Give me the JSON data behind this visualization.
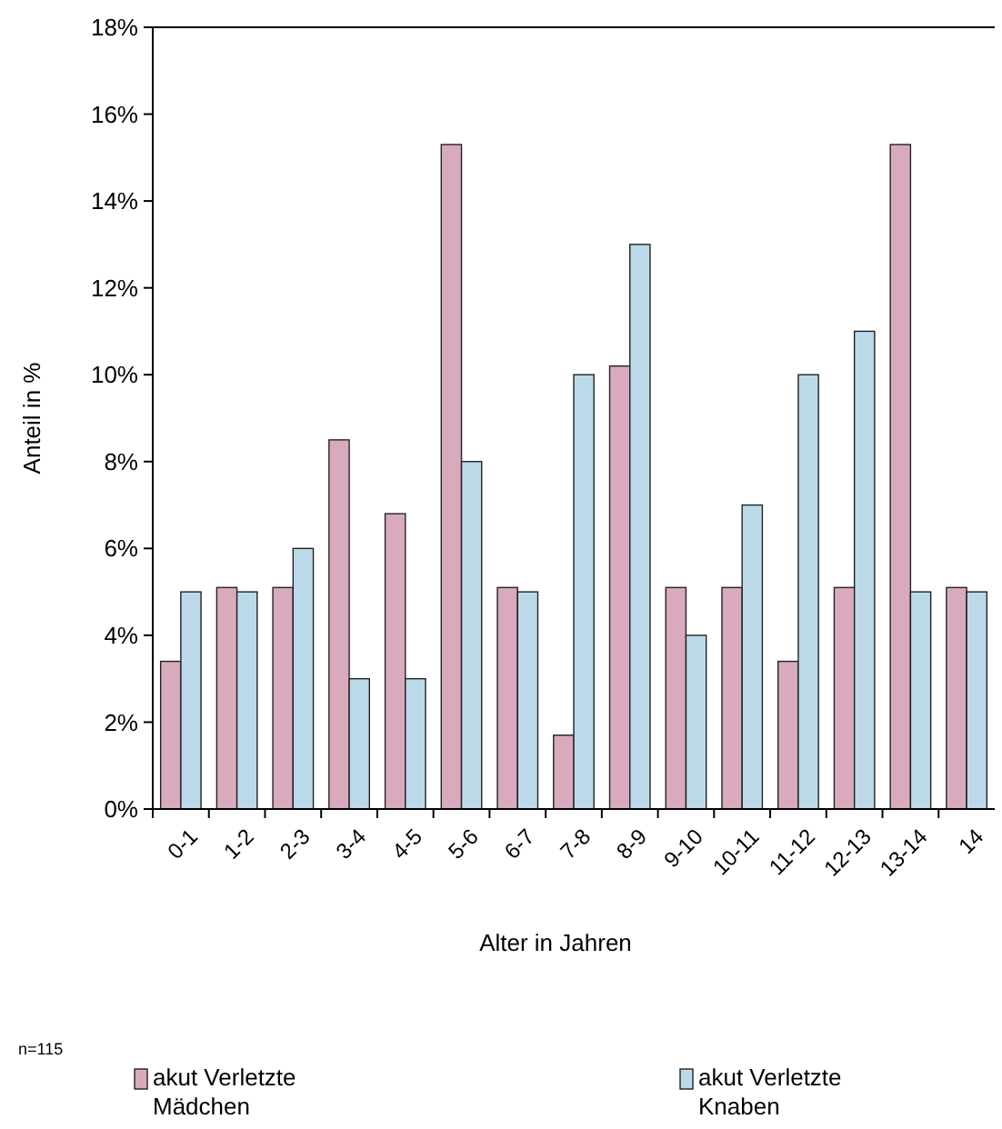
{
  "chart_data": {
    "type": "bar",
    "xlabel": "Alter in Jahren",
    "ylabel": "Anteil in %",
    "categories": [
      "0-1",
      "1-2",
      "2-3",
      "3-4",
      "4-5",
      "5-6",
      "6-7",
      "7-8",
      "8-9",
      "9-10",
      "10-11",
      "11-12",
      "12-13",
      "13-14",
      "14"
    ],
    "series": [
      {
        "name": "akut Verletzte Mädchen",
        "color": "#d9aabd",
        "values": [
          3.4,
          5.1,
          5.1,
          8.5,
          6.8,
          15.3,
          5.1,
          1.7,
          10.2,
          5.1,
          5.1,
          3.4,
          5.1,
          15.3,
          5.1
        ]
      },
      {
        "name": "akut Verletzte Knaben",
        "color": "#bcd9ea",
        "values": [
          5,
          5,
          6,
          3,
          3,
          8,
          5,
          10,
          13,
          4,
          7,
          10,
          11,
          5,
          5
        ]
      }
    ],
    "ylim": [
      0,
      18
    ],
    "yticks": [
      {
        "value": 0,
        "label": "0%"
      },
      {
        "value": 2,
        "label": "2%"
      },
      {
        "value": 4,
        "label": "4%"
      },
      {
        "value": 6,
        "label": "6%"
      },
      {
        "value": 8,
        "label": "8%"
      },
      {
        "value": 10,
        "label": "10%"
      },
      {
        "value": 12,
        "label": "12%"
      },
      {
        "value": 14,
        "label": "14%"
      },
      {
        "value": 16,
        "label": "16%"
      },
      {
        "value": 18,
        "label": "18%"
      }
    ],
    "grid": false,
    "legend": "bottom",
    "annotations": [
      "n=115"
    ]
  }
}
